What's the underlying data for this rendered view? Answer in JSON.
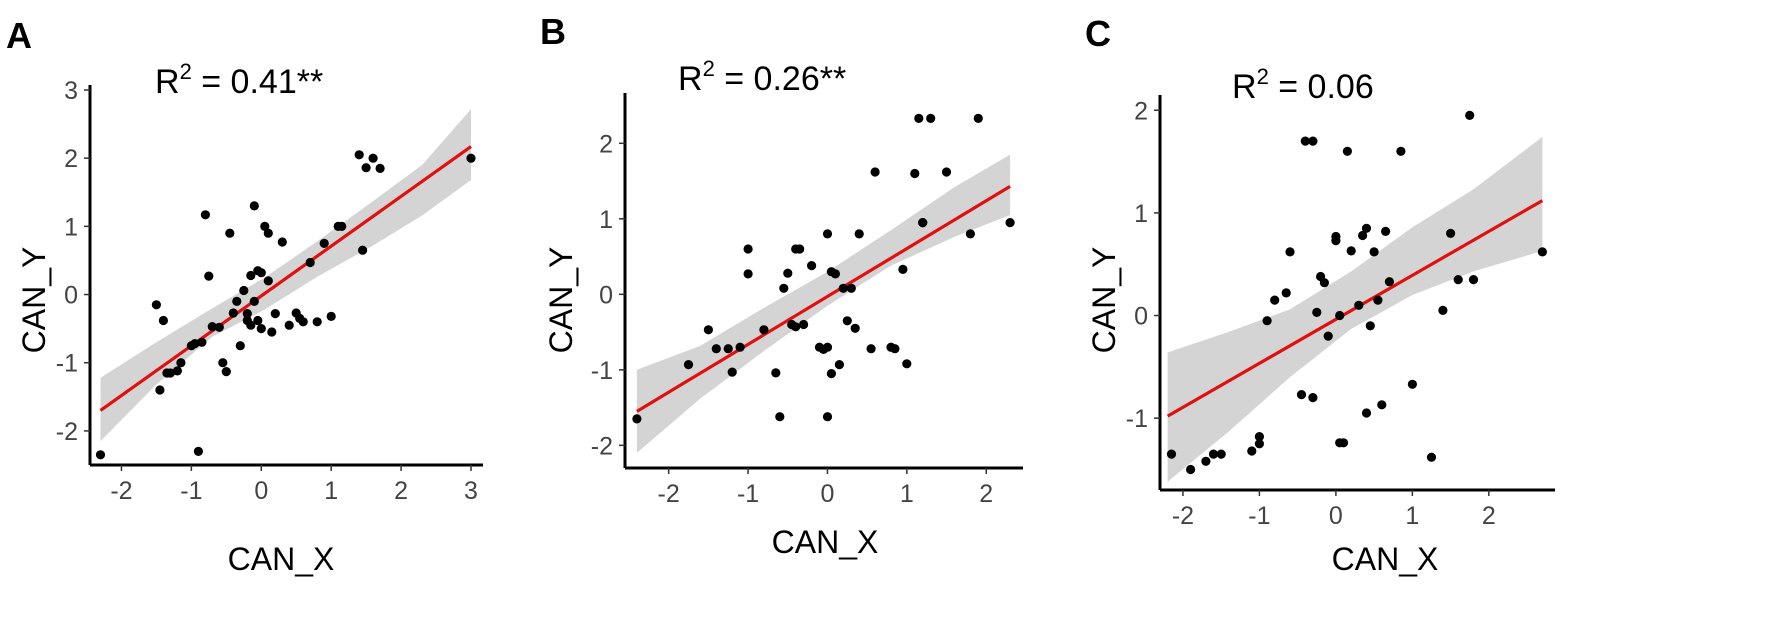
{
  "colors": {
    "fit_line": "#e0100f",
    "ci_band": "#cfcfcf",
    "points": "#000000",
    "axis": "#000000"
  },
  "chart_data": [
    {
      "panel_label": "A",
      "type": "scatter",
      "title": "R² = 0.41**",
      "r2_prefix": "R",
      "r2_exp": "2",
      "r2_value": " = 0.41**",
      "xlabel": "CAN_X",
      "ylabel": "CAN_Y",
      "xlim": [
        -2.45,
        3.1
      ],
      "ylim": [
        -2.5,
        3.0
      ],
      "xticks": [
        -2,
        -1,
        0,
        1,
        2,
        3
      ],
      "yticks": [
        -2,
        -1,
        0,
        1,
        2,
        3
      ],
      "fit": {
        "x": [
          -2.3,
          3.0
        ],
        "y": [
          -1.7,
          2.17
        ]
      },
      "ci": {
        "x": [
          -2.3,
          -1.5,
          -0.7,
          0.05,
          0.8,
          1.6,
          2.3,
          3.0
        ],
        "lower": [
          -2.15,
          -1.32,
          -0.62,
          -0.22,
          0.26,
          0.72,
          1.16,
          1.68
        ],
        "upper": [
          -1.22,
          -0.7,
          -0.2,
          0.25,
          0.78,
          1.37,
          1.9,
          2.72
        ]
      },
      "points": {
        "x": [
          -2.3,
          -1.5,
          -1.45,
          -1.4,
          -1.35,
          -1.3,
          -1.2,
          -1.15,
          -1.0,
          -0.95,
          -0.9,
          -0.85,
          -0.8,
          -0.75,
          -0.7,
          -0.6,
          -0.55,
          -0.5,
          -0.45,
          -0.4,
          -0.35,
          -0.3,
          -0.25,
          -0.2,
          -0.2,
          -0.15,
          -0.15,
          -0.1,
          -0.1,
          -0.05,
          -0.05,
          0.0,
          0.0,
          0.05,
          0.1,
          0.1,
          0.15,
          0.2,
          0.3,
          0.4,
          0.5,
          0.55,
          0.6,
          0.7,
          0.8,
          0.9,
          1.0,
          1.1,
          1.15,
          1.4,
          1.45,
          1.5,
          1.6,
          1.7,
          3.0
        ],
        "y": [
          -2.35,
          -0.15,
          -1.4,
          -0.38,
          -1.15,
          -1.15,
          -1.12,
          -1.0,
          -0.75,
          -0.72,
          -2.3,
          -0.7,
          1.17,
          0.27,
          -0.47,
          -0.48,
          -1.0,
          -1.13,
          0.9,
          -0.27,
          -0.1,
          -0.75,
          0.06,
          -0.38,
          -0.28,
          0.28,
          -0.45,
          1.3,
          -0.1,
          -0.38,
          0.35,
          0.32,
          -0.5,
          1.0,
          0.9,
          0.2,
          -0.55,
          -0.28,
          0.77,
          -0.45,
          -0.27,
          -0.35,
          -0.4,
          0.47,
          -0.4,
          0.75,
          -0.32,
          1.0,
          1.0,
          2.05,
          0.65,
          1.86,
          2.0,
          1.85,
          2.0
        ]
      }
    },
    {
      "panel_label": "B",
      "type": "scatter",
      "title": "R² = 0.26**",
      "r2_prefix": "R",
      "r2_exp": "2",
      "r2_value": " = 0.26**",
      "xlabel": "CAN_X",
      "ylabel": "CAN_Y",
      "xlim": [
        -2.55,
        2.4
      ],
      "ylim": [
        -2.3,
        2.6
      ],
      "xticks": [
        -2,
        -1,
        0,
        1,
        2
      ],
      "yticks": [
        -2,
        -1,
        0,
        1,
        2
      ],
      "fit": {
        "x": [
          -2.4,
          2.3
        ],
        "y": [
          -1.55,
          1.43
        ]
      },
      "ci": {
        "x": [
          -2.4,
          -1.6,
          -0.8,
          0.0,
          0.8,
          1.6,
          2.3
        ],
        "lower": [
          -2.1,
          -1.38,
          -0.75,
          -0.15,
          0.38,
          0.76,
          1.05
        ],
        "upper": [
          -1.0,
          -0.68,
          -0.18,
          0.3,
          0.85,
          1.42,
          1.85
        ]
      },
      "points": {
        "x": [
          -2.4,
          -1.75,
          -1.5,
          -1.4,
          -1.25,
          -1.2,
          -1.1,
          -1.0,
          -1.0,
          -0.8,
          -0.65,
          -0.6,
          -0.55,
          -0.5,
          -0.45,
          -0.4,
          -0.4,
          -0.35,
          -0.3,
          -0.2,
          -0.1,
          -0.05,
          0.0,
          0.0,
          0.0,
          0.05,
          0.05,
          0.1,
          0.15,
          0.2,
          0.25,
          0.3,
          0.35,
          0.4,
          0.55,
          0.6,
          0.8,
          0.85,
          0.95,
          1.0,
          1.1,
          1.15,
          1.2,
          1.2,
          1.3,
          1.5,
          1.8,
          1.9,
          2.3
        ],
        "y": [
          -1.65,
          -0.93,
          -0.47,
          -0.72,
          -0.72,
          -1.03,
          -0.7,
          0.6,
          0.27,
          -0.47,
          -1.04,
          -1.62,
          0.08,
          0.28,
          -0.4,
          -0.43,
          0.6,
          0.6,
          -0.4,
          0.38,
          -0.7,
          -0.73,
          -1.62,
          -0.7,
          0.8,
          0.3,
          -1.05,
          0.27,
          -0.93,
          0.08,
          -0.35,
          0.08,
          -0.45,
          0.8,
          -0.72,
          1.62,
          -0.7,
          -0.72,
          0.33,
          -0.92,
          1.6,
          2.33,
          0.95,
          0.95,
          2.33,
          1.62,
          0.8,
          2.33,
          0.95
        ]
      }
    },
    {
      "panel_label": "C",
      "type": "scatter",
      "title": "R² = 0.06",
      "r2_prefix": "R",
      "r2_exp": "2",
      "r2_value": " = 0.06",
      "xlabel": "CAN_X",
      "ylabel": "CAN_Y",
      "xlim": [
        -2.3,
        2.8
      ],
      "ylim": [
        -1.7,
        2.1
      ],
      "xticks": [
        -2,
        -1,
        0,
        1,
        2
      ],
      "yticks": [
        -1,
        0,
        1,
        2
      ],
      "fit": {
        "x": [
          -2.2,
          2.7
        ],
        "y": [
          -0.98,
          1.12
        ]
      },
      "ci": {
        "x": [
          -2.2,
          -1.4,
          -0.6,
          0.2,
          1.0,
          1.8,
          2.7
        ],
        "lower": [
          -1.62,
          -1.13,
          -0.6,
          -0.13,
          0.2,
          0.43,
          0.63
        ],
        "upper": [
          -0.36,
          -0.16,
          0.06,
          0.43,
          0.86,
          1.23,
          1.74
        ]
      },
      "points": {
        "x": [
          -2.15,
          -1.9,
          -1.7,
          -1.6,
          -1.5,
          -1.1,
          -1.0,
          -1.0,
          -0.9,
          -0.8,
          -0.65,
          -0.6,
          -0.45,
          -0.4,
          -0.3,
          -0.3,
          -0.25,
          -0.2,
          -0.15,
          -0.1,
          0.0,
          0.0,
          0.05,
          0.05,
          0.1,
          0.15,
          0.2,
          0.3,
          0.35,
          0.4,
          0.4,
          0.45,
          0.5,
          0.55,
          0.6,
          0.65,
          0.7,
          0.85,
          1.0,
          1.25,
          1.4,
          1.5,
          1.6,
          1.75,
          1.8,
          2.7
        ],
        "y": [
          -1.35,
          -1.5,
          -1.42,
          -1.35,
          -1.35,
          -1.32,
          -1.18,
          -1.25,
          -0.05,
          0.15,
          0.22,
          0.62,
          -0.77,
          1.7,
          1.7,
          -0.8,
          0.03,
          0.38,
          0.32,
          -0.2,
          0.73,
          0.77,
          0.0,
          -1.24,
          -1.24,
          1.6,
          0.63,
          0.1,
          0.78,
          0.85,
          -0.95,
          -0.1,
          0.62,
          0.15,
          -0.87,
          0.82,
          0.33,
          1.6,
          -0.67,
          -1.38,
          0.05,
          0.8,
          0.35,
          1.95,
          0.35,
          0.62
        ]
      }
    }
  ]
}
